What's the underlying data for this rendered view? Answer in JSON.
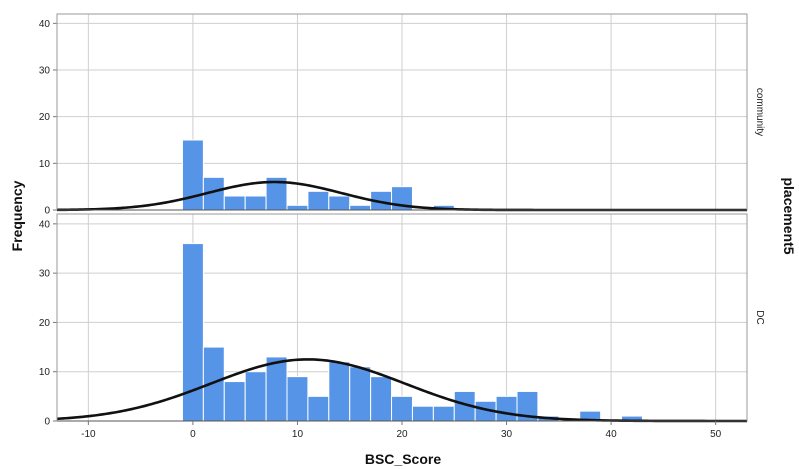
{
  "chart_data": {
    "type": "bar",
    "subtype": "paneled histogram with normal curve",
    "xlabel": "BSC_Score",
    "ylabel": "Frequency",
    "facet_label": "placement5",
    "xlim": [
      -13,
      53
    ],
    "xticks": [
      -10,
      0,
      10,
      20,
      30,
      40,
      50
    ],
    "ylim": [
      0,
      42
    ],
    "yticks": [
      0,
      10,
      20,
      30,
      40
    ],
    "bin_width": 2,
    "bar_color": "#5594e6",
    "curve_color": "#111111",
    "panels": [
      {
        "label": "community",
        "bin_starts": [
          -1,
          1,
          3,
          5,
          7,
          9,
          11,
          13,
          15,
          17,
          19,
          21,
          23
        ],
        "counts": [
          15,
          7,
          3,
          3,
          7,
          1,
          4,
          3,
          1,
          4,
          5,
          0,
          1
        ],
        "normal_curve": {
          "mean": 7.8,
          "sd": 6.4,
          "peak": 6
        }
      },
      {
        "label": "DC",
        "bin_starts": [
          -1,
          1,
          3,
          5,
          7,
          9,
          11,
          13,
          15,
          17,
          19,
          21,
          23,
          25,
          27,
          29,
          31,
          33,
          35,
          37,
          39,
          41
        ],
        "counts": [
          36,
          15,
          8,
          10,
          13,
          9,
          5,
          12,
          11,
          9,
          5,
          3,
          3,
          6,
          4,
          5,
          6,
          1,
          0,
          2,
          0,
          1
        ],
        "normal_curve": {
          "mean": 11,
          "sd": 9.3,
          "peak": 12.5
        }
      }
    ]
  }
}
